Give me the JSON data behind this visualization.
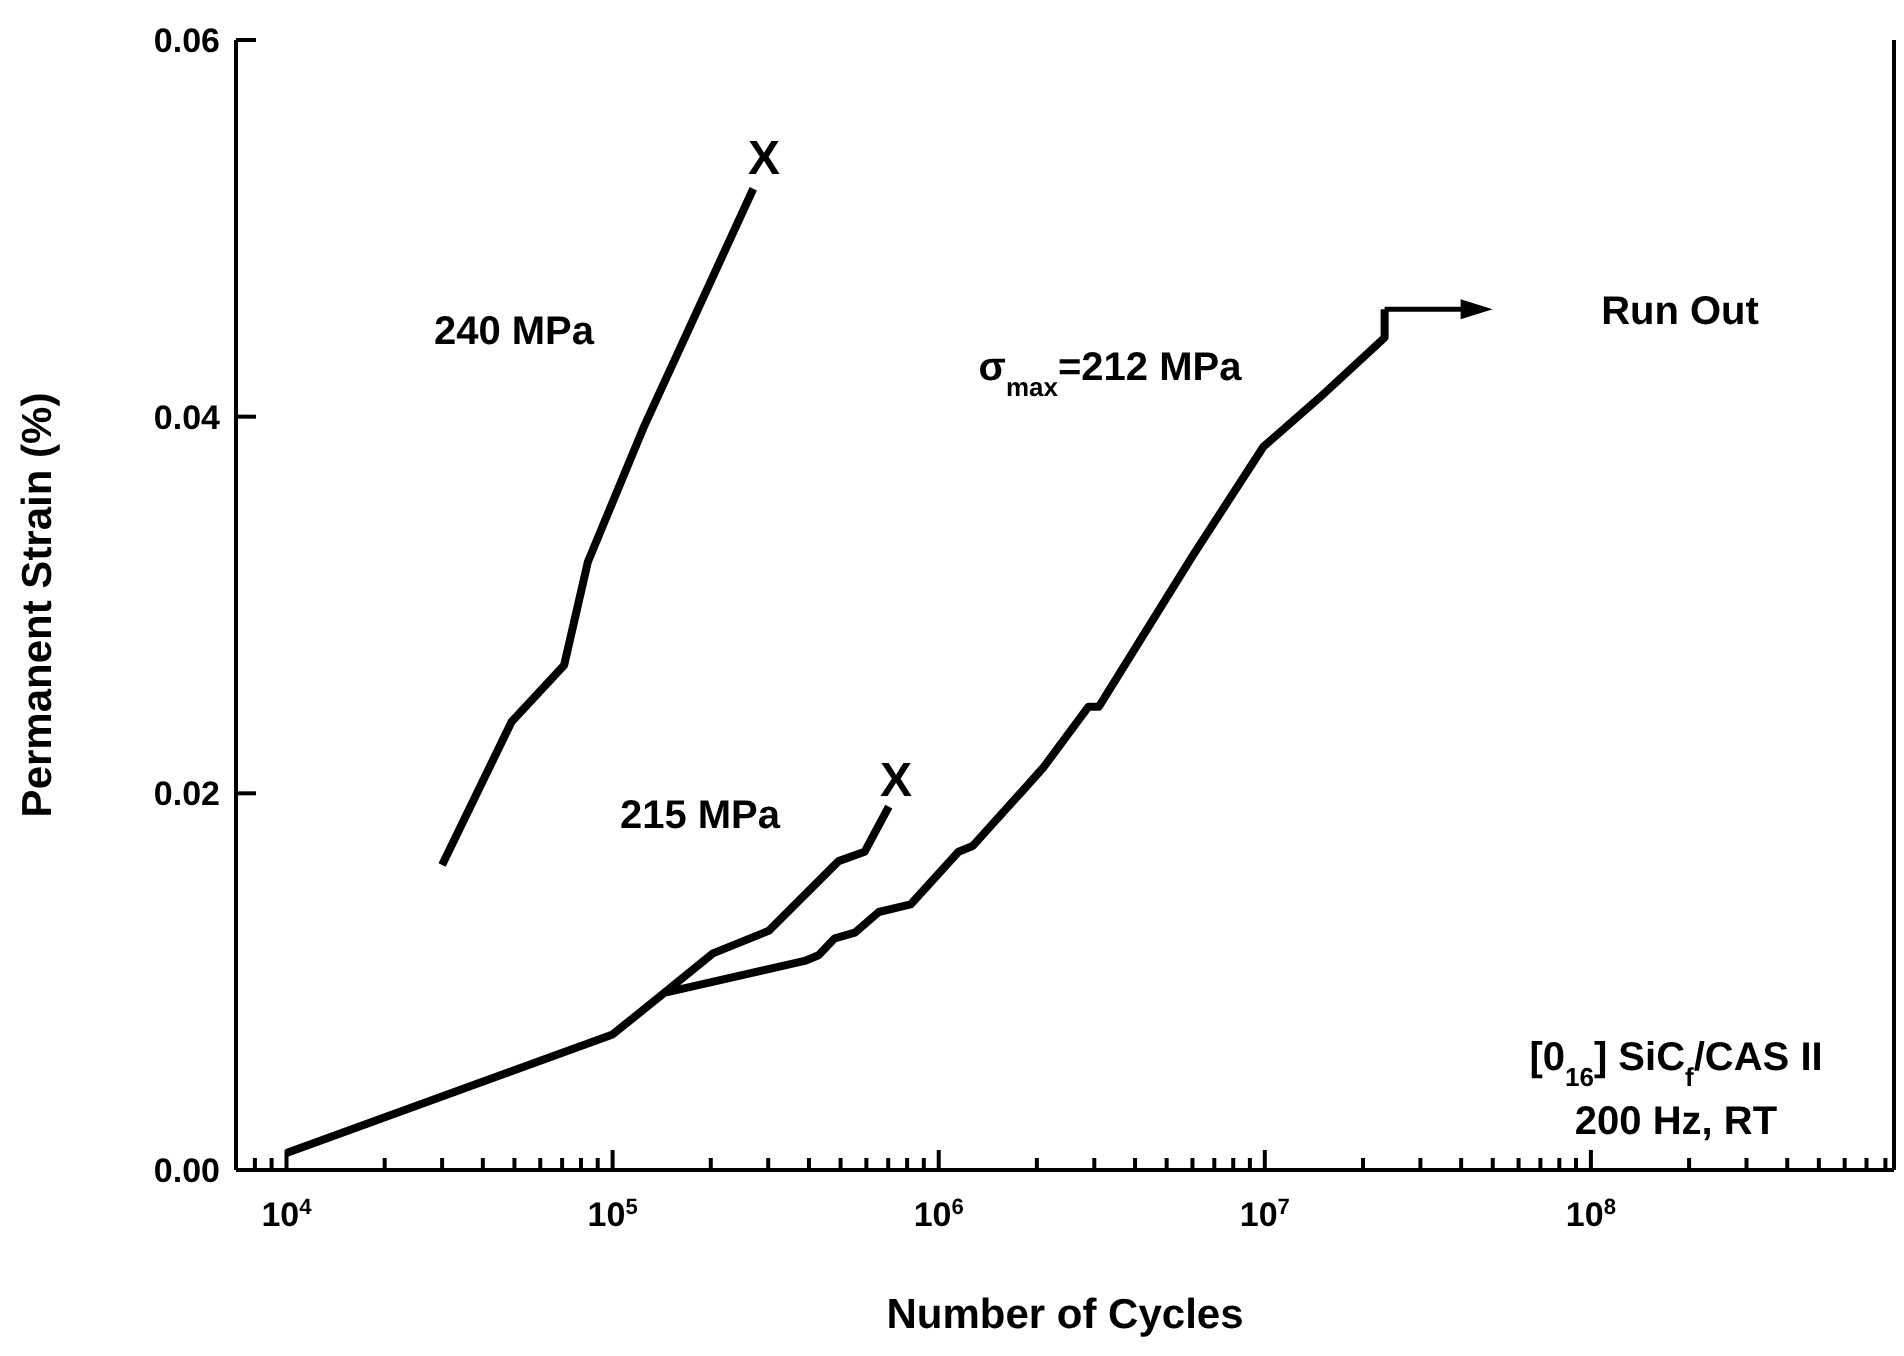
{
  "chart_data": {
    "type": "line",
    "xlabel": "Number of Cycles",
    "ylabel": "Permanent Strain (%)",
    "log": "x",
    "marker": "none",
    "line_style": "solid",
    "xlim": [
      7000,
      850000000
    ],
    "xticks": [
      {
        "value": 8000,
        "label": null
      },
      {
        "value": 9000,
        "label": null
      },
      {
        "value": 10000,
        "label": "10$^{4}$"
      },
      {
        "value": 20000,
        "label": null
      },
      {
        "value": 30000,
        "label": null
      },
      {
        "value": 40000,
        "label": null
      },
      {
        "value": 50000,
        "label": null
      },
      {
        "value": 60000,
        "label": null
      },
      {
        "value": 70000,
        "label": null
      },
      {
        "value": 80000,
        "label": null
      },
      {
        "value": 90000,
        "label": null
      },
      {
        "value": 100000,
        "label": "10$^{5}$"
      },
      {
        "value": 200000,
        "label": null
      },
      {
        "value": 300000,
        "label": null
      },
      {
        "value": 400000,
        "label": null
      },
      {
        "value": 500000,
        "label": null
      },
      {
        "value": 600000,
        "label": null
      },
      {
        "value": 700000,
        "label": null
      },
      {
        "value": 800000,
        "label": null
      },
      {
        "value": 900000,
        "label": null
      },
      {
        "value": 1000000,
        "label": "10$^{6}$"
      },
      {
        "value": 2000000,
        "label": null
      },
      {
        "value": 3000000,
        "label": null
      },
      {
        "value": 4000000,
        "label": null
      },
      {
        "value": 5000000,
        "label": null
      },
      {
        "value": 6000000,
        "label": null
      },
      {
        "value": 7000000,
        "label": null
      },
      {
        "value": 8000000,
        "label": null
      },
      {
        "value": 9000000,
        "label": null
      },
      {
        "value": 10000000,
        "label": "10$^{7}$"
      },
      {
        "value": 20000000,
        "label": null
      },
      {
        "value": 30000000,
        "label": null
      },
      {
        "value": 40000000,
        "label": null
      },
      {
        "value": 50000000,
        "label": null
      },
      {
        "value": 60000000,
        "label": null
      },
      {
        "value": 70000000,
        "label": null
      },
      {
        "value": 80000000,
        "label": null
      },
      {
        "value": 90000000,
        "label": null
      },
      {
        "value": 100000000,
        "label": "10$^{8}$"
      },
      {
        "value": 200000000,
        "label": null
      },
      {
        "value": 300000000,
        "label": null
      },
      {
        "value": 400000000,
        "label": null
      },
      {
        "value": 500000000,
        "label": null
      },
      {
        "value": 600000000,
        "label": null
      },
      {
        "value": 700000000,
        "label": null
      },
      {
        "value": 800000000,
        "label": null
      }
    ],
    "ylim": [
      0,
      0.06
    ],
    "yticks": [
      {
        "value": 0,
        "label": "0.00"
      },
      {
        "value": 0.02,
        "label": "0.02"
      },
      {
        "value": 0.04,
        "label": "0.04"
      },
      {
        "value": 0.06,
        "label": "0.06"
      }
    ],
    "series": [
      {
        "color": "#000000",
        "x": [
          30000,
          49000,
          71000,
          84000,
          125000,
          270000
        ],
        "values": [
          0.0162,
          0.0238,
          0.0268,
          0.0323,
          0.0395,
          0.0521
        ]
      },
      {
        "color": "#000000",
        "x": [
          144000,
          203000,
          301000,
          493000,
          593000,
          703000
        ],
        "values": [
          0.0094,
          0.0115,
          0.0127,
          0.0164,
          0.0169,
          0.0193
        ]
      },
      {
        "color": "#000000",
        "x": [
          10000,
          100000,
          144000,
          388000,
          428000,
          480000,
          553000,
          655000,
          820000,
          1150000,
          1270000,
          1800000,
          2100000,
          2880000,
          3100000,
          6000000,
          9900000,
          14700000,
          23300000,
          23300000
        ],
        "values": [
          0.0009,
          0.0072,
          0.0094,
          0.0111,
          0.0114,
          0.0123,
          0.0126,
          0.0137,
          0.0141,
          0.0169,
          0.0172,
          0.0201,
          0.0214,
          0.0246,
          0.0246,
          0.0326,
          0.0384,
          0.041,
          0.0442,
          0.0457
        ]
      }
    ],
    "annotations": [
      "240 MPa",
      "215 MPa",
      "σ$_{max}$=212 MPa",
      "Run Out",
      "X",
      "X",
      "[0$_{16}$] SiC$_{f}$/CAS II",
      "200 Hz, RT"
    ]
  }
}
